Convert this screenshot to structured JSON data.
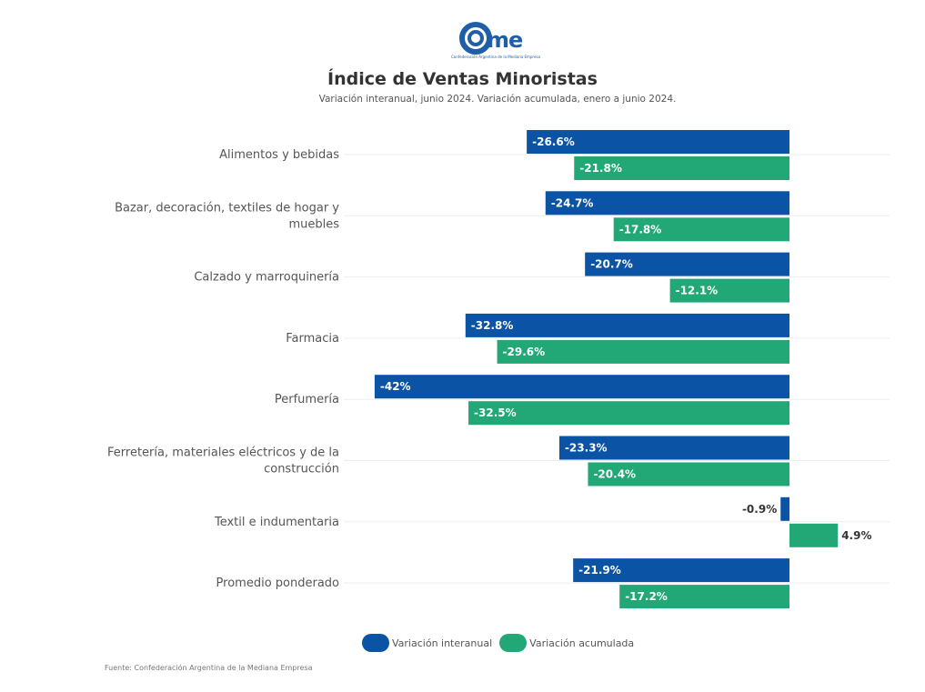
{
  "header": {
    "logo_text": "came",
    "logo_subtitle": "Confederación Argentina de la Mediana Empresa",
    "title": "Índice de Ventas Minoristas",
    "subtitle": "Variación interanual, junio 2024. Variación acumulada, enero a junio 2024."
  },
  "colors": {
    "interanual": "#0b53a5",
    "acumulada": "#21a876"
  },
  "chart_data": {
    "type": "bar",
    "orientation": "horizontal",
    "title": "Índice de Ventas Minoristas",
    "subtitle": "Variación interanual, junio 2024. Variación acumulada, enero a junio 2024.",
    "xlabel": "",
    "ylabel": "",
    "xlim": [
      -42,
      9
    ],
    "grid": true,
    "legend_position": "bottom",
    "categories": [
      [
        "Alimentos y bebidas"
      ],
      [
        "Bazar, decoración, textiles de hogar y",
        "muebles"
      ],
      [
        "Calzado y marroquinería"
      ],
      [
        "Farmacia"
      ],
      [
        "Perfumería"
      ],
      [
        "Ferretería, materiales eléctricos y de la",
        "construcción"
      ],
      [
        "Textil e indumentaria"
      ],
      [
        "Promedio ponderado"
      ]
    ],
    "series": [
      {
        "name": "Variación interanual",
        "key": "interanual",
        "values": [
          -26.6,
          -24.7,
          -20.7,
          -32.8,
          -42,
          -23.3,
          -0.9,
          -21.9
        ],
        "labels": [
          "-26.6%",
          "-24.7%",
          "-20.7%",
          "-32.8%",
          "-42%",
          "-23.3%",
          "-0.9%",
          "-21.9%"
        ]
      },
      {
        "name": "Variación acumulada",
        "key": "acumulada",
        "values": [
          -21.8,
          -17.8,
          -12.1,
          -29.6,
          -32.5,
          -20.4,
          4.9,
          -17.2
        ],
        "labels": [
          "-21.8%",
          "-17.8%",
          "-12.1%",
          "-29.6%",
          "-32.5%",
          "-20.4%",
          "4.9%",
          "-17.2%"
        ]
      }
    ]
  },
  "legend": [
    {
      "label": "Variación interanual"
    },
    {
      "label": "Variación acumulada"
    }
  ],
  "footer": {
    "source": "Fuente: Confederación Argentina de la Mediana Empresa"
  }
}
